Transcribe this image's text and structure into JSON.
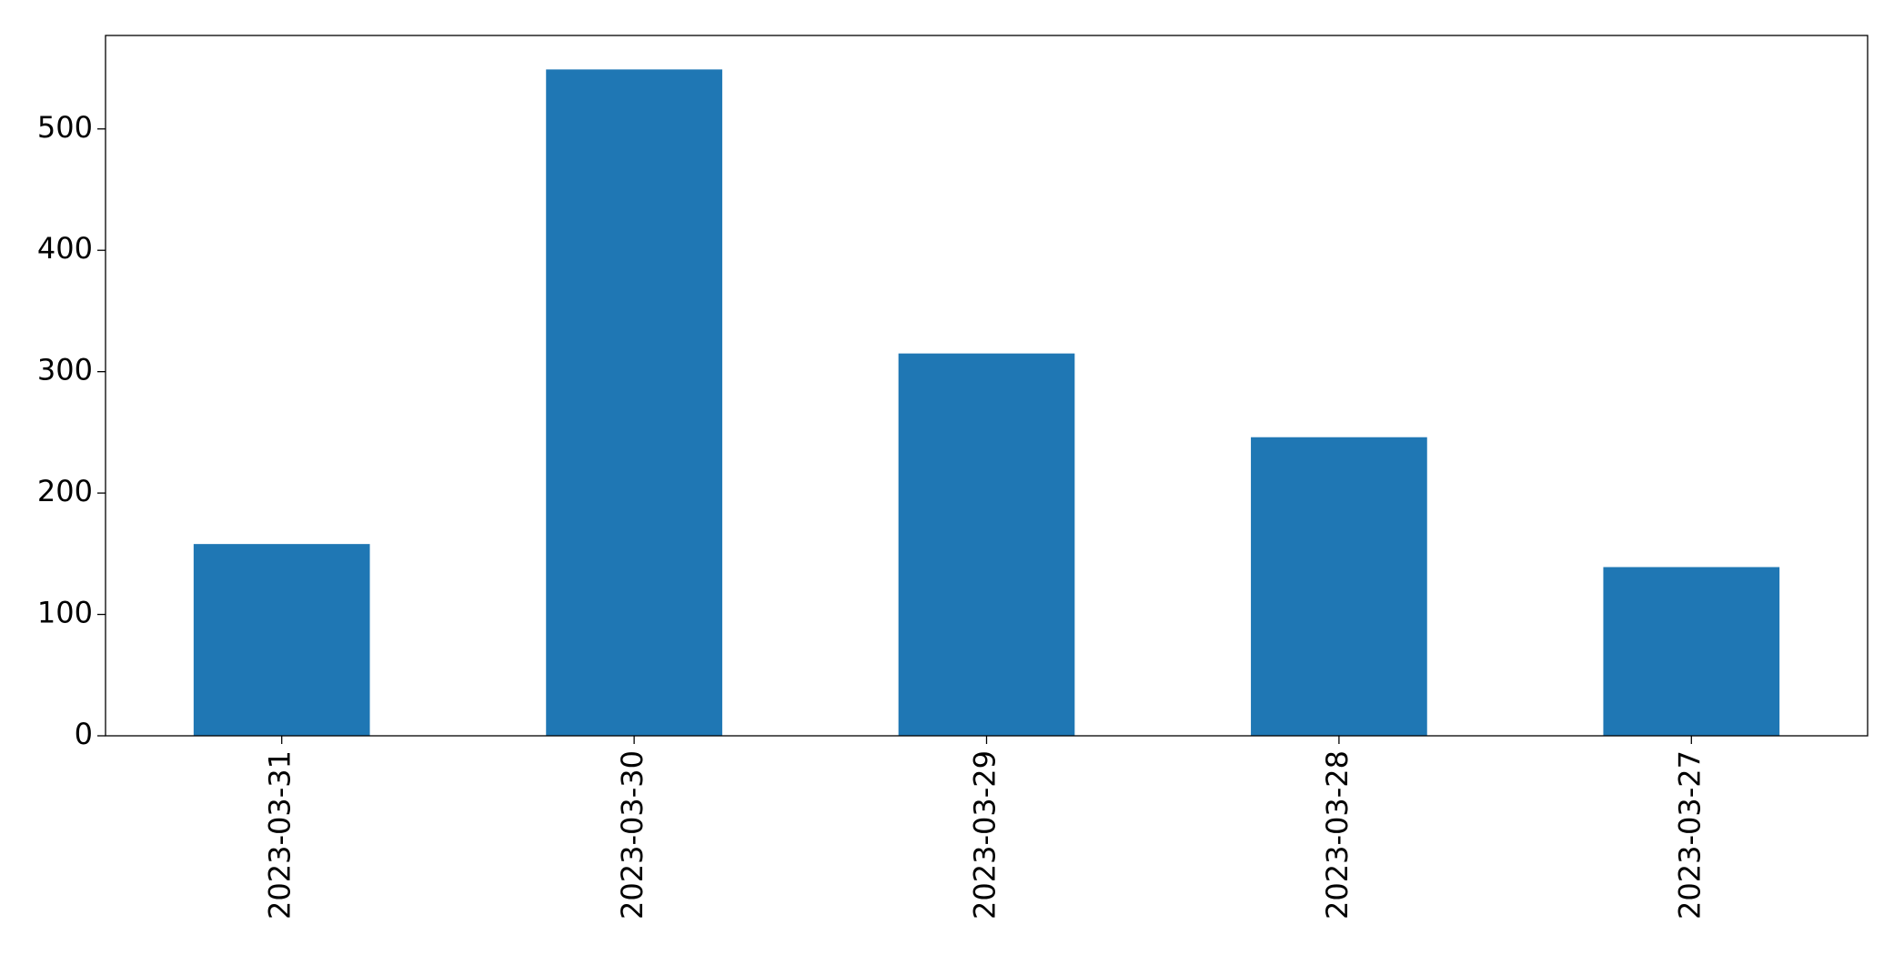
{
  "chart_data": {
    "type": "bar",
    "categories": [
      "2023-03-31",
      "2023-03-30",
      "2023-03-29",
      "2023-03-28",
      "2023-03-27"
    ],
    "values": [
      158,
      549,
      315,
      246,
      139
    ],
    "color": "#1f77b4",
    "ylim": [
      0,
      577
    ],
    "yticks": [
      0,
      100,
      200,
      300,
      400,
      500
    ],
    "grid": false
  }
}
